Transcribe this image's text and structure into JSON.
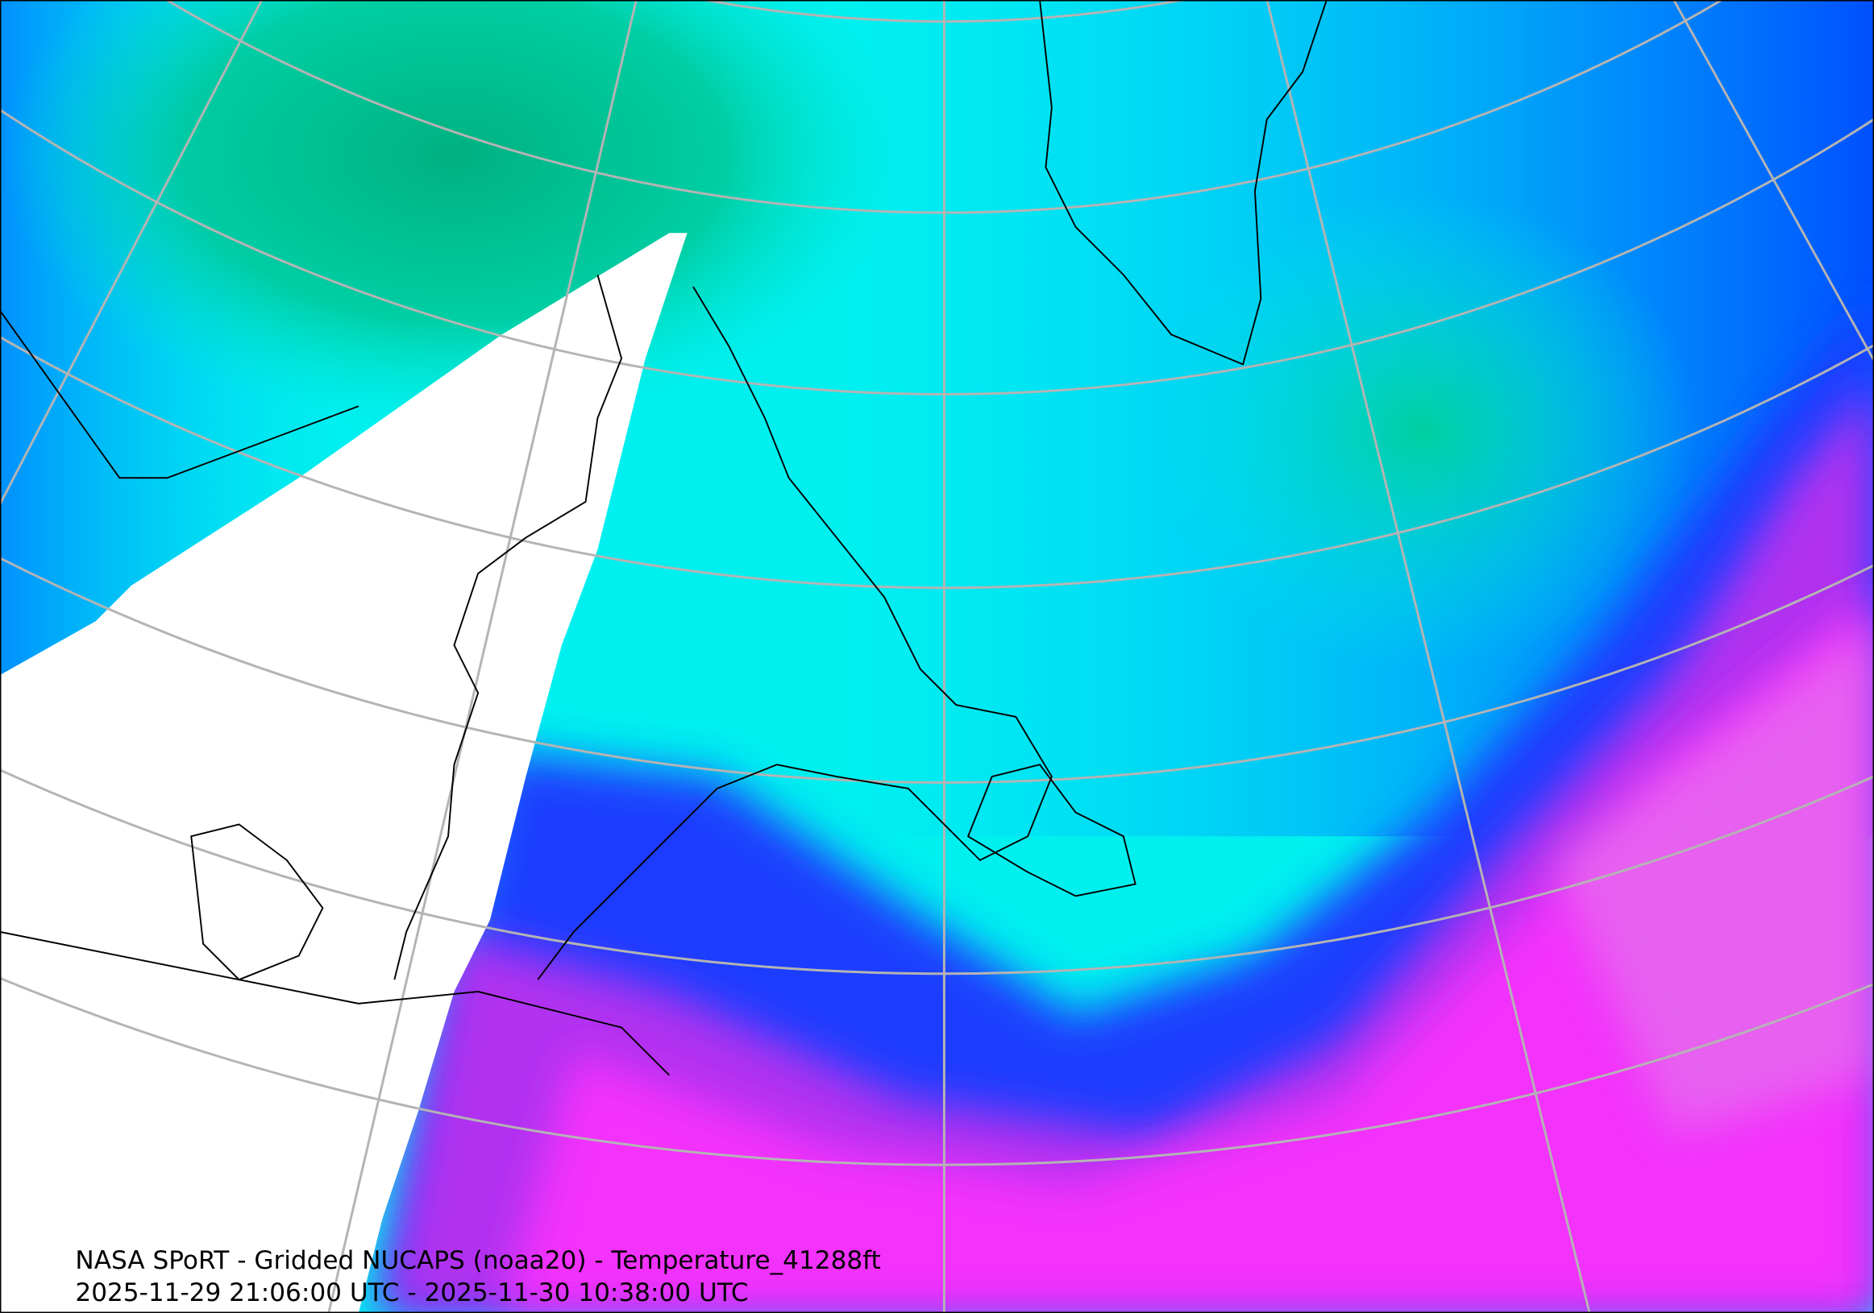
{
  "map": {
    "caption": [
      "NASA SPoRT - Gridded NUCAPS (noaa20) - Temperature_41288ft",
      "2025-11-29 21:06:00 UTC - 2025-11-30 10:38:00 UTC"
    ]
  }
}
